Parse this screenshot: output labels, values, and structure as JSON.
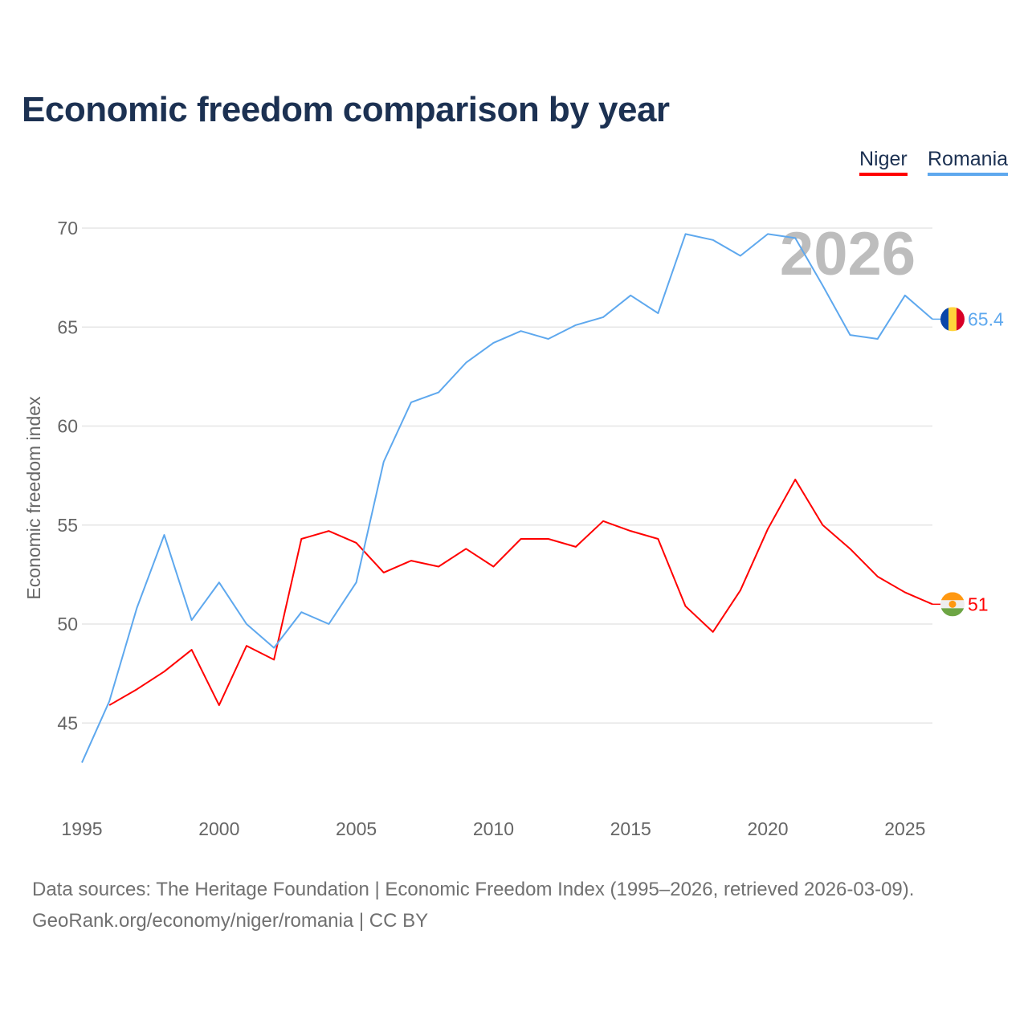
{
  "chart_data": {
    "type": "line",
    "title": "Economic freedom comparison by year",
    "xlabel": "",
    "ylabel": "Economic freedom index",
    "xlim": [
      1995,
      2026
    ],
    "ylim": [
      40.5,
      70
    ],
    "x_ticks": [
      "1995",
      "2000",
      "2005",
      "2010",
      "2015",
      "2020",
      "2025"
    ],
    "y_ticks": [
      "45",
      "50",
      "55",
      "60",
      "65",
      "70"
    ],
    "grid": true,
    "legend_position": "top-right",
    "watermark_year": "2026",
    "series": [
      {
        "name": "Niger",
        "color": "#ff0000",
        "end_label": "51",
        "x": [
          1996,
          1997,
          1998,
          1999,
          2000,
          2001,
          2002,
          2003,
          2004,
          2005,
          2006,
          2007,
          2008,
          2009,
          2010,
          2011,
          2012,
          2013,
          2014,
          2015,
          2016,
          2017,
          2018,
          2019,
          2020,
          2021,
          2022,
          2023,
          2024,
          2025,
          2026
        ],
        "values": [
          45.9,
          46.7,
          47.6,
          48.7,
          45.9,
          48.9,
          48.2,
          54.3,
          54.7,
          54.1,
          52.6,
          53.2,
          52.9,
          53.8,
          52.9,
          54.3,
          54.3,
          53.9,
          55.2,
          54.7,
          54.3,
          50.9,
          49.6,
          51.7,
          54.8,
          57.3,
          55.0,
          53.8,
          52.4,
          51.6,
          51.0
        ]
      },
      {
        "name": "Romania",
        "color": "#5ea8ee",
        "end_label": "65.4",
        "x": [
          1995,
          1996,
          1997,
          1998,
          1999,
          2000,
          2001,
          2002,
          2003,
          2004,
          2005,
          2006,
          2007,
          2008,
          2009,
          2010,
          2011,
          2012,
          2013,
          2014,
          2015,
          2016,
          2017,
          2018,
          2019,
          2020,
          2021,
          2022,
          2023,
          2024,
          2025,
          2026
        ],
        "values": [
          43.0,
          46.1,
          50.8,
          54.5,
          50.2,
          52.1,
          50.0,
          48.8,
          50.6,
          50.0,
          52.1,
          58.2,
          61.2,
          61.7,
          63.2,
          64.2,
          64.8,
          64.4,
          65.1,
          65.5,
          66.6,
          65.7,
          69.7,
          69.4,
          68.6,
          69.7,
          69.5,
          67.1,
          64.6,
          64.4,
          66.6,
          65.4
        ]
      }
    ]
  },
  "source": {
    "line1": "Data sources: The Heritage Foundation | Economic Freedom Index (1995–2026, retrieved 2026-03-09).",
    "line2": "GeoRank.org/economy/niger/romania | CC BY"
  }
}
